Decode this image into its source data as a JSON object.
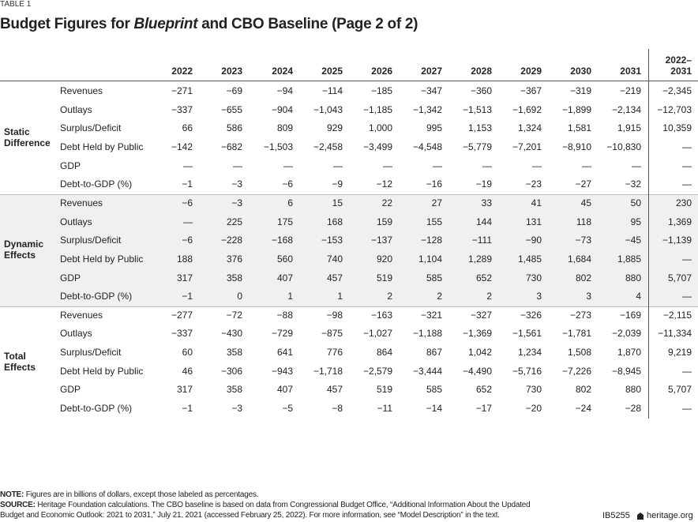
{
  "header": {
    "label": "TABLE 1",
    "title": {
      "before": "Budget Figures for",
      "emphasis": "Blueprint",
      "after": "and CBO Baseline (Page 2 of 2)"
    }
  },
  "table": {
    "years": [
      "2022",
      "2023",
      "2024",
      "2025",
      "2026",
      "2027",
      "2028",
      "2029",
      "2030",
      "2031"
    ],
    "total_header": [
      "2022–",
      "2031"
    ],
    "groups": [
      {
        "label": "Static Difference",
        "rows": [
          {
            "label": "Revenues",
            "values": [
              "−271",
              "−69",
              "−94",
              "−114",
              "−185",
              "−347",
              "−360",
              "−367",
              "−319",
              "−219"
            ],
            "total": "−2,345"
          },
          {
            "label": "Outlays",
            "values": [
              "−337",
              "−655",
              "−904",
              "−1,043",
              "−1,185",
              "−1,342",
              "−1,513",
              "−1,692",
              "−1,899",
              "−2,134"
            ],
            "total": "−12,703"
          },
          {
            "label": "Surplus/Deficit",
            "values": [
              "66",
              "586",
              "809",
              "929",
              "1,000",
              "995",
              "1,153",
              "1,324",
              "1,581",
              "1,915"
            ],
            "total": "10,359"
          },
          {
            "label": "Debt Held by Public",
            "values": [
              "−142",
              "−682",
              "−1,503",
              "−2,458",
              "−3,499",
              "−4,548",
              "−5,779",
              "−7,201",
              "−8,910",
              "−10,830"
            ],
            "total": "—"
          },
          {
            "label": "GDP",
            "values": [
              "—",
              "—",
              "—",
              "—",
              "—",
              "—",
              "—",
              "—",
              "—",
              "—"
            ],
            "total": "—"
          },
          {
            "label": "Debt-to-GDP (%)",
            "values": [
              "−1",
              "−3",
              "−6",
              "−9",
              "−12",
              "−16",
              "−19",
              "−23",
              "−27",
              "−32"
            ],
            "total": "—"
          }
        ]
      },
      {
        "label": "Dynamic Effects",
        "rows": [
          {
            "label": "Revenues",
            "values": [
              "−6",
              "−3",
              "6",
              "15",
              "22",
              "27",
              "33",
              "41",
              "45",
              "50"
            ],
            "total": "230"
          },
          {
            "label": "Outlays",
            "values": [
              "—",
              "225",
              "175",
              "168",
              "159",
              "155",
              "144",
              "131",
              "118",
              "95"
            ],
            "total": "1,369"
          },
          {
            "label": "Surplus/Deficit",
            "values": [
              "−6",
              "−228",
              "−168",
              "−153",
              "−137",
              "−128",
              "−111",
              "−90",
              "−73",
              "−45"
            ],
            "total": "−1,139"
          },
          {
            "label": "Debt Held by Public",
            "values": [
              "188",
              "376",
              "560",
              "740",
              "920",
              "1,104",
              "1,289",
              "1,485",
              "1,684",
              "1,885"
            ],
            "total": "—"
          },
          {
            "label": "GDP",
            "values": [
              "317",
              "358",
              "407",
              "457",
              "519",
              "585",
              "652",
              "730",
              "802",
              "880"
            ],
            "total": "5,707"
          },
          {
            "label": "Debt-to-GDP (%)",
            "values": [
              "−1",
              "0",
              "1",
              "1",
              "2",
              "2",
              "2",
              "3",
              "3",
              "4"
            ],
            "total": "—"
          }
        ]
      },
      {
        "label": "Total Effects",
        "rows": [
          {
            "label": "Revenues",
            "values": [
              "−277",
              "−72",
              "−88",
              "−98",
              "−163",
              "−321",
              "−327",
              "−326",
              "−273",
              "−169"
            ],
            "total": "−2,115"
          },
          {
            "label": "Outlays",
            "values": [
              "−337",
              "−430",
              "−729",
              "−875",
              "−1,027",
              "−1,188",
              "−1,369",
              "−1,561",
              "−1,781",
              "−2,039"
            ],
            "total": "−11,334"
          },
          {
            "label": "Surplus/Deficit",
            "values": [
              "60",
              "358",
              "641",
              "776",
              "864",
              "867",
              "1,042",
              "1,234",
              "1,508",
              "1,870"
            ],
            "total": "9,219"
          },
          {
            "label": "Debt Held by Public",
            "values": [
              "46",
              "−306",
              "−943",
              "−1,718",
              "−2,579",
              "−3,444",
              "−4,490",
              "−5,716",
              "−7,226",
              "−8,945"
            ],
            "total": "—"
          },
          {
            "label": "GDP",
            "values": [
              "317",
              "358",
              "407",
              "457",
              "519",
              "585",
              "652",
              "730",
              "802",
              "880"
            ],
            "total": "5,707"
          },
          {
            "label": "Debt-to-GDP (%)",
            "values": [
              "−1",
              "−3",
              "−5",
              "−8",
              "−11",
              "−14",
              "−17",
              "−20",
              "−24",
              "−28"
            ],
            "total": "—"
          }
        ]
      }
    ]
  },
  "footer": {
    "note_label": "NOTE:",
    "note": "Figures are in billions of dollars, except those labeled as percentages.",
    "source_label": "SOURCE:",
    "source": "Heritage Foundation calculations. The CBO baseline is based on data from Congressional Budget Office, “Additional Information About the Updated Budget and Economic Outlook: 2021 to 2031,” July 21, 2021 (accessed February 25, 2022). For more information, see “Model Description” in the text.",
    "code": "IB5255",
    "site": "heritage.org"
  }
}
